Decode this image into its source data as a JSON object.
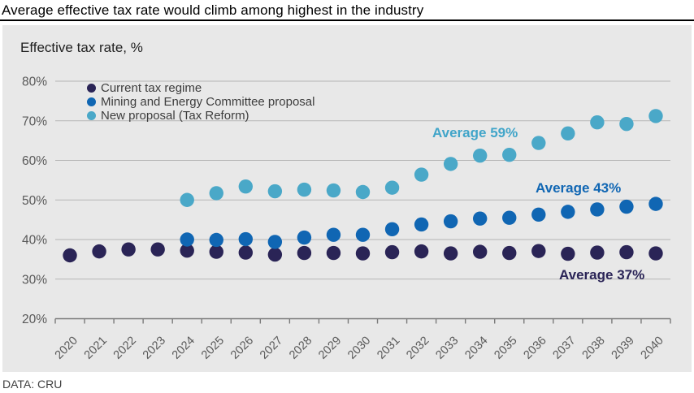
{
  "title": "Average effective tax rate would climb among highest in the industry",
  "subtitle": "Effective tax rate, %",
  "source": "DATA: CRU",
  "colors": {
    "panel_bg": "#e8e8e8",
    "gridline": "#b5b5b5",
    "axis": "#7a7a7a",
    "tick_label": "#595959",
    "legend_text": "#3d3d3d"
  },
  "chart_data": {
    "type": "scatter",
    "title": "Effective tax rate, %",
    "xlabel": "",
    "ylabel": "Effective tax rate, %",
    "x": [
      2020,
      2021,
      2022,
      2023,
      2024,
      2025,
      2026,
      2027,
      2028,
      2029,
      2030,
      2031,
      2032,
      2033,
      2034,
      2035,
      2036,
      2037,
      2038,
      2039,
      2040
    ],
    "ylim": [
      20,
      80
    ],
    "yticks": [
      20,
      30,
      40,
      50,
      60,
      70,
      80
    ],
    "ytick_suffix": "%",
    "grid": true,
    "legend_position": "top-left-inside",
    "series": [
      {
        "name": "Current tax regime",
        "color": "#2a2456",
        "average_label": "Average 37%",
        "values": [
          36,
          37,
          37.5,
          37.5,
          37.2,
          36.9,
          36.7,
          36.2,
          36.6,
          36.6,
          36.5,
          36.8,
          37,
          36.5,
          36.9,
          36.6,
          37.1,
          36.4,
          36.7,
          36.8,
          36.5
        ]
      },
      {
        "name": "Mining and Energy Committee proposal",
        "color": "#1066b3",
        "average_label": "Average 43%",
        "values": [
          null,
          null,
          null,
          null,
          40,
          39.9,
          40.1,
          39.4,
          40.5,
          41.2,
          41.2,
          42.6,
          43.8,
          44.6,
          45.3,
          45.5,
          46.3,
          47,
          47.6,
          48.3,
          49
        ]
      },
      {
        "name": "New proposal (Tax Reform)",
        "color": "#4aa8c8",
        "average_label": "Average 59%",
        "values": [
          null,
          null,
          null,
          null,
          50,
          51.7,
          53.4,
          52.2,
          52.6,
          52.4,
          52,
          53.1,
          56.4,
          59.1,
          61.2,
          61.4,
          64.4,
          66.8,
          69.6,
          69.2,
          71.2
        ]
      }
    ],
    "annotations": [
      {
        "text": "Average 59%",
        "series": "New proposal (Tax Reform)",
        "color": "#41a5c9"
      },
      {
        "text": "Average 43%",
        "series": "Mining and Energy Committee proposal",
        "color": "#1066b3"
      },
      {
        "text": "Average 37%",
        "series": "Current tax regime",
        "color": "#2a2456"
      }
    ]
  }
}
